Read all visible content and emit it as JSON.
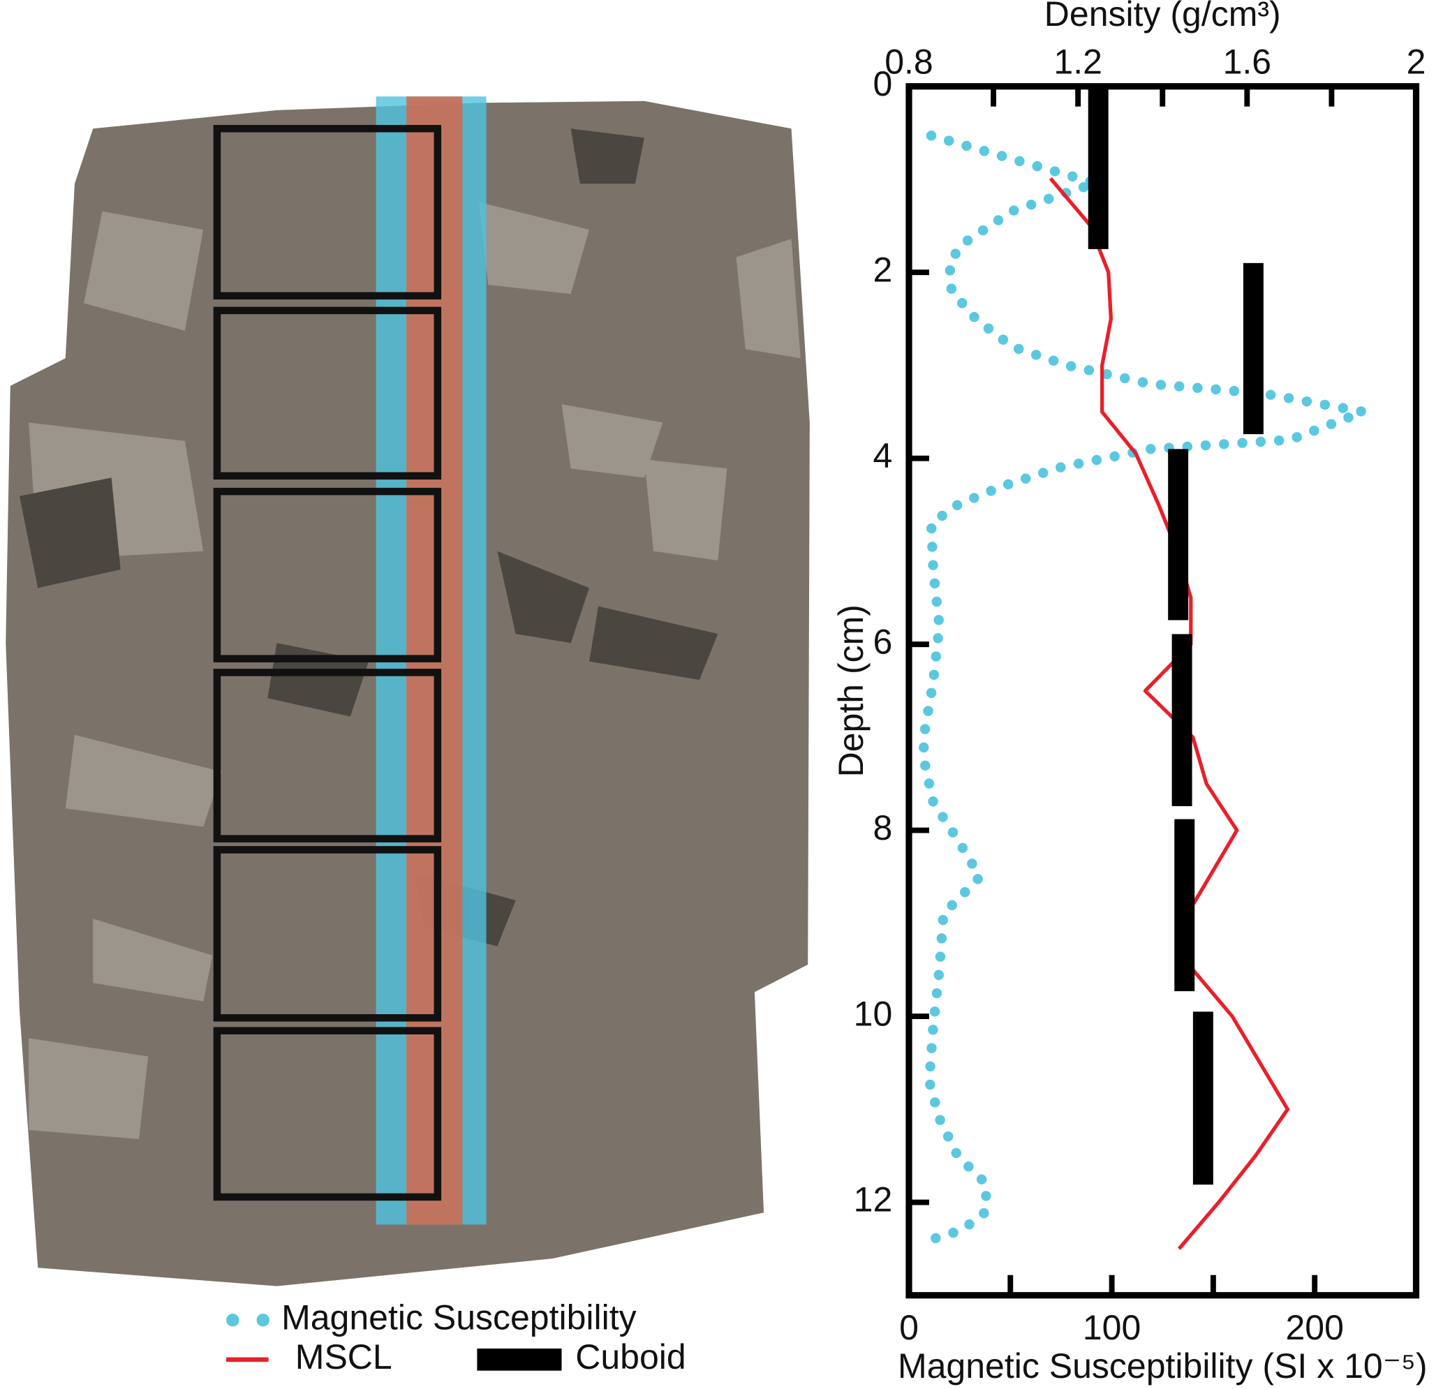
{
  "chart_data": {
    "type": "line",
    "x2_label": "Density (g/cm³)",
    "x_label": "Magnetic Susceptibility (SI x 10⁻⁵)",
    "y_label": "Depth (cm)",
    "xlim": [
      0,
      250
    ],
    "xticks": [
      0,
      100,
      200
    ],
    "xminor": [
      50,
      150,
      250
    ],
    "x2lim": [
      0.8,
      2
    ],
    "x2ticks": [
      0.8,
      1.2,
      1.6,
      2
    ],
    "x2minor": [
      1.0,
      1.4,
      1.8
    ],
    "ylim": [
      0,
      13
    ],
    "yticks": [
      0,
      2,
      4,
      6,
      8,
      10,
      12
    ],
    "y_inverted": true,
    "series": [
      {
        "name": "Magnetic Susceptibility",
        "color": "#5bc8e0",
        "style": "dotted",
        "axis": "x",
        "depth": [
          0.53,
          1.04,
          1.34,
          1.7,
          1.9,
          2.2,
          2.5,
          2.8,
          3.0,
          3.2,
          3.3,
          3.5,
          3.8,
          3.9,
          4.1,
          4.3,
          4.5,
          4.7,
          5.2,
          5.8,
          6.4,
          6.9,
          7.2,
          7.7,
          8.1,
          8.5,
          8.9,
          9.5,
          10.1,
          10.7,
          11.1,
          11.5,
          11.8,
          12.1,
          12.3,
          12.4
        ],
        "values": [
          11,
          92,
          51,
          26,
          20,
          21,
          33,
          51,
          78,
          119,
          174,
          224,
          188,
          119,
          74,
          46,
          24,
          11,
          12,
          15,
          12,
          8,
          7,
          12,
          24,
          35,
          17,
          15,
          12,
          10,
          15,
          24,
          38,
          38,
          26,
          11
        ]
      },
      {
        "name": "MSCL",
        "color": "#e8202a",
        "style": "solid",
        "axis": "x2",
        "depth": [
          0.99,
          1.49,
          2.0,
          2.5,
          3.0,
          3.5,
          3.95,
          4.5,
          5.0,
          5.5,
          6.0,
          6.5,
          7.0,
          7.5,
          8.0,
          9.0,
          9.5,
          10.0,
          11.0,
          11.5,
          12.0,
          12.5
        ],
        "values": [
          1.135,
          1.228,
          1.272,
          1.278,
          1.257,
          1.257,
          1.337,
          1.391,
          1.435,
          1.467,
          1.467,
          1.359,
          1.472,
          1.504,
          1.576,
          1.446,
          1.472,
          1.565,
          1.696,
          1.62,
          1.533,
          1.439
        ]
      },
      {
        "name": "Cuboid",
        "color": "#000000",
        "style": "bar",
        "axis": "x2",
        "depth_top": [
          0,
          1.9,
          3.9,
          5.89,
          7.88,
          9.95
        ],
        "depth_bottom": [
          1.75,
          3.74,
          5.74,
          7.74,
          9.73,
          11.81
        ],
        "values": [
          1.248,
          1.615,
          1.437,
          1.446,
          1.452,
          1.496
        ]
      }
    ]
  }
}
